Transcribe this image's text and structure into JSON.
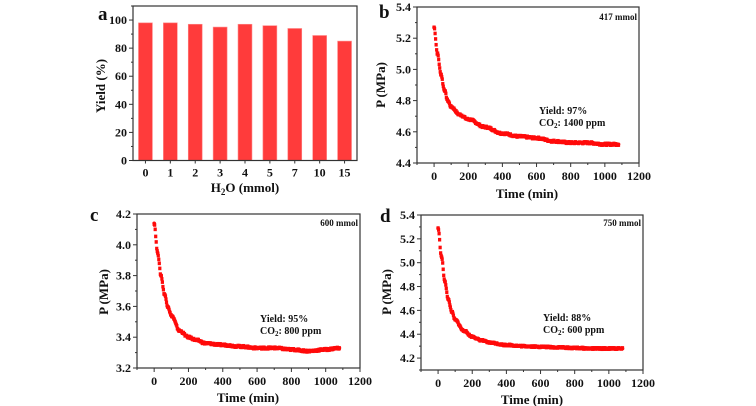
{
  "chart_data": [
    {
      "panel": "a",
      "type": "bar",
      "title": "",
      "xlabel": "H2O (mmol)",
      "xlabel_main": "H",
      "xlabel_sub": "2",
      "xlabel_rest": "O (mmol)",
      "ylabel": "Yield (%)",
      "categories": [
        "0",
        "1",
        "2",
        "3",
        "4",
        "5",
        "7",
        "10",
        "15"
      ],
      "values": [
        98,
        98,
        97,
        95,
        97,
        96,
        94,
        89,
        85
      ],
      "ylim": [
        0,
        110
      ],
      "yticks": [
        0,
        20,
        40,
        60,
        80,
        100
      ],
      "color": "#ff3b3b",
      "grid": false
    },
    {
      "panel": "b",
      "type": "scatter",
      "title": "",
      "annotation_corner": "417 mmol",
      "annotation_yield": "Yield: 97%",
      "annotation_co2_prefix": "CO",
      "annotation_co2_sub": "2",
      "annotation_co2_rest": ": 1400 ppm",
      "xlabel": "Time (min)",
      "ylabel": "P (MPa)",
      "xlim": [
        -100,
        1200
      ],
      "ylim": [
        4.4,
        5.4
      ],
      "xticks": [
        0,
        200,
        400,
        600,
        800,
        1000,
        1200
      ],
      "yticks": [
        4.4,
        4.6,
        4.8,
        5.0,
        5.2,
        5.4
      ],
      "ytick_decimals": 1,
      "x": [
        0,
        20,
        40,
        60,
        80,
        100,
        150,
        200,
        300,
        400,
        500,
        600,
        700,
        800,
        900,
        1000,
        1080
      ],
      "y": [
        5.27,
        5.1,
        4.97,
        4.87,
        4.8,
        4.76,
        4.71,
        4.68,
        4.63,
        4.59,
        4.57,
        4.56,
        4.54,
        4.53,
        4.53,
        4.52,
        4.52
      ],
      "color": "#ff0a0a",
      "grid": false
    },
    {
      "panel": "c",
      "type": "scatter",
      "title": "",
      "annotation_corner": "600 mmol",
      "annotation_yield": "Yield: 95%",
      "annotation_co2_prefix": "CO",
      "annotation_co2_sub": "2",
      "annotation_co2_rest": ": 800 ppm",
      "xlabel": "Time (min)",
      "ylabel": "P (MPa)",
      "xlim": [
        -100,
        1200
      ],
      "ylim": [
        3.2,
        4.2
      ],
      "xticks": [
        0,
        200,
        400,
        600,
        800,
        1000,
        1200
      ],
      "yticks": [
        3.2,
        3.4,
        3.6,
        3.8,
        4.0,
        4.2
      ],
      "ytick_decimals": 1,
      "x": [
        0,
        20,
        40,
        60,
        80,
        100,
        150,
        200,
        250,
        300,
        400,
        500,
        600,
        700,
        800,
        900,
        1000,
        1080
      ],
      "y": [
        4.14,
        3.95,
        3.8,
        3.68,
        3.6,
        3.54,
        3.44,
        3.4,
        3.38,
        3.36,
        3.35,
        3.34,
        3.33,
        3.33,
        3.32,
        3.31,
        3.32,
        3.33
      ],
      "color": "#ff0a0a",
      "grid": false
    },
    {
      "panel": "d",
      "type": "scatter",
      "title": "",
      "annotation_corner": "750 mmol",
      "annotation_yield": "Yield: 88%",
      "annotation_co2_prefix": "CO",
      "annotation_co2_sub": "2",
      "annotation_co2_rest": ": 600 ppm",
      "xlabel": "Time (min)",
      "ylabel": "P (MPa)",
      "xlim": [
        -100,
        1200
      ],
      "ylim": [
        4.1,
        5.4
      ],
      "xticks": [
        0,
        200,
        400,
        600,
        800,
        1000,
        1200
      ],
      "yticks": [
        4.2,
        4.4,
        4.6,
        4.8,
        5.0,
        5.2,
        5.4
      ],
      "ytick_decimals": 1,
      "x": [
        0,
        20,
        40,
        60,
        80,
        100,
        150,
        200,
        250,
        300,
        400,
        500,
        600,
        700,
        800,
        900,
        1000,
        1080
      ],
      "y": [
        5.29,
        5.05,
        4.84,
        4.69,
        4.59,
        4.52,
        4.43,
        4.38,
        4.35,
        4.33,
        4.31,
        4.3,
        4.295,
        4.29,
        4.285,
        4.28,
        4.28,
        4.28
      ],
      "color": "#ff0a0a",
      "grid": false
    }
  ],
  "panel_letters": [
    "a",
    "b",
    "c",
    "d"
  ]
}
